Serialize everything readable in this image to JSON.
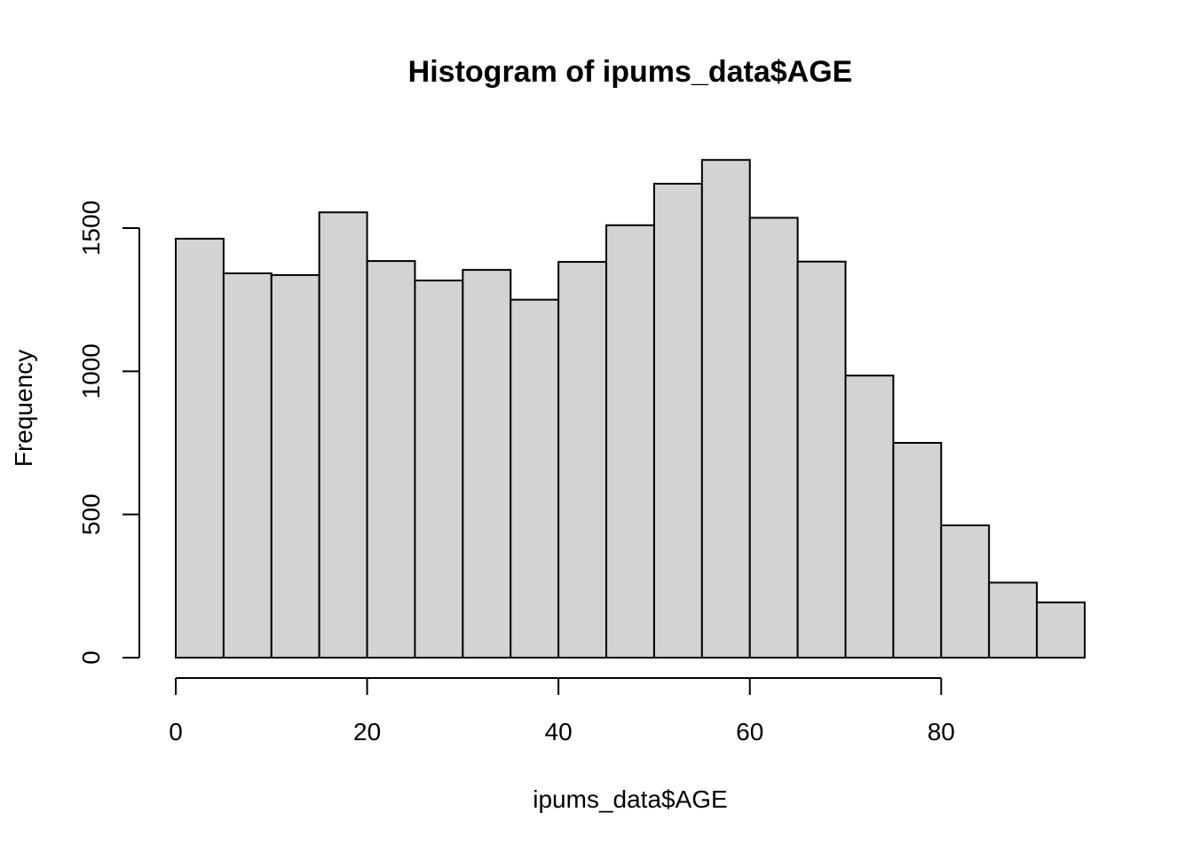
{
  "chart_data": {
    "type": "bar",
    "title": "Histogram of ipums_data$AGE",
    "xlabel": "ipums_data$AGE",
    "ylabel": "Frequency",
    "bin_edges": [
      0,
      5,
      10,
      15,
      20,
      25,
      30,
      35,
      40,
      45,
      50,
      55,
      60,
      65,
      70,
      75,
      80,
      85,
      90,
      95
    ],
    "values": [
      1463,
      1342,
      1336,
      1555,
      1385,
      1317,
      1354,
      1250,
      1382,
      1510,
      1655,
      1738,
      1536,
      1383,
      985,
      750,
      462,
      262,
      193
    ],
    "xlim": [
      0,
      95
    ],
    "ylim": [
      0,
      1738
    ],
    "x_ticks": [
      0,
      20,
      40,
      60,
      80
    ],
    "y_ticks": [
      0,
      500,
      1000,
      1500
    ],
    "bar_color": "#d3d3d3",
    "grid": false
  }
}
